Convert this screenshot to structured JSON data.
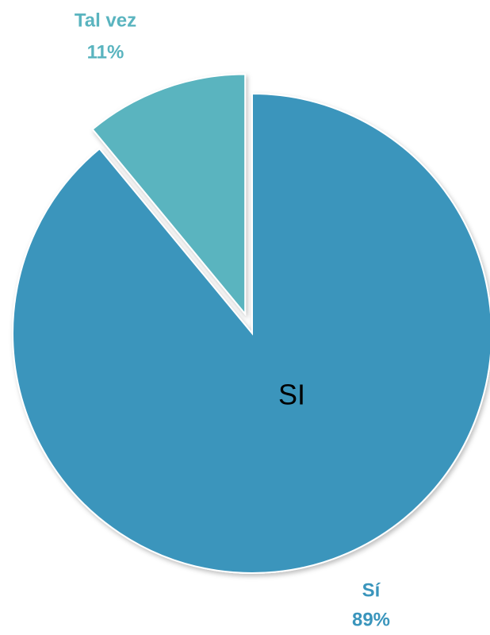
{
  "chart_data": {
    "type": "pie",
    "categories": [
      "Sí",
      "Tal vez"
    ],
    "values": [
      89,
      11
    ],
    "value_labels": [
      "89%",
      "11%"
    ],
    "colors": [
      "#3a95bc",
      "#5ab4bf"
    ],
    "exploded": [
      false,
      true
    ],
    "annotation": "SI"
  }
}
